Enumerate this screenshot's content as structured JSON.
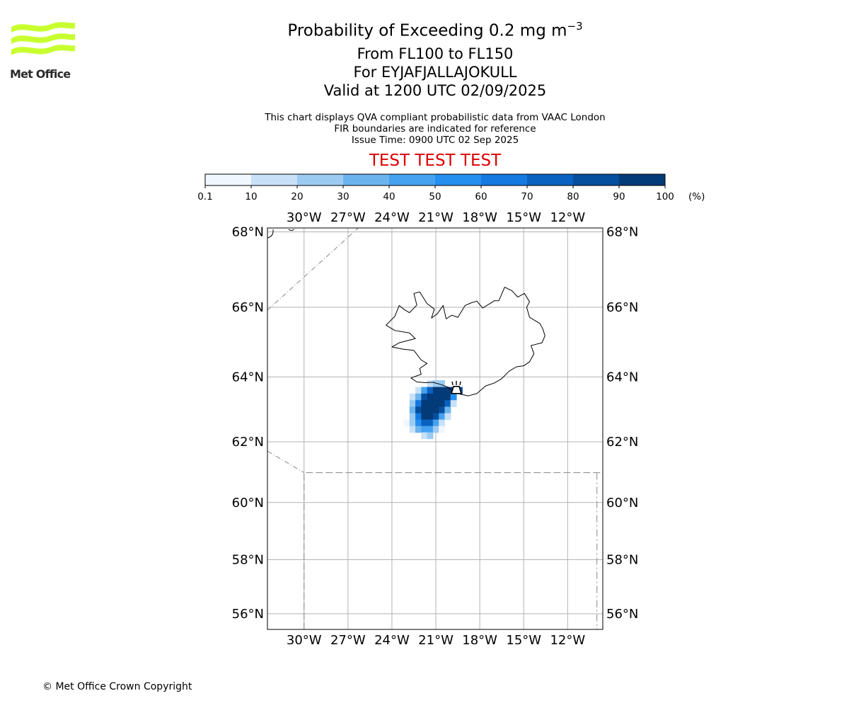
{
  "brand": {
    "logo_text": "Met Office",
    "logo_color": "#c8ff2f"
  },
  "header": {
    "title_main": "Probability of Exceeding 0.2 mg m",
    "title_exponent": "−3",
    "level_range": "From FL100 to FL150",
    "volcano": "For EYJAFJALLAJOKULL",
    "valid_time": "Valid at 1200 UTC 02/09/2025",
    "note_1": "This chart displays QVA compliant probabilistic data from VAAC London",
    "note_2": "FIR boundaries are indicated for reference",
    "issue_time": "Issue Time: 0900 UTC 02 Sep 2025",
    "test_banner": "TEST TEST TEST",
    "test_color": "#dd0000"
  },
  "colorbar": {
    "tick_labels": [
      "0.1",
      "10",
      "20",
      "30",
      "40",
      "50",
      "60",
      "70",
      "80",
      "90",
      "100"
    ],
    "unit": "(%)",
    "colors": [
      "#f0f7ff",
      "#c8e1f8",
      "#9ccbf2",
      "#6cb4ee",
      "#45a2f0",
      "#258ff0",
      "#1479e0",
      "#0a62c0",
      "#064e9e",
      "#033a78",
      "#022a5a"
    ]
  },
  "map": {
    "lon_labels": [
      "30°W",
      "27°W",
      "24°W",
      "21°W",
      "18°W",
      "15°W",
      "12°W"
    ],
    "lat_labels": [
      "68°N",
      "66°N",
      "64°N",
      "62°N",
      "60°N",
      "58°N",
      "56°N"
    ],
    "lon_ticks": [
      -30,
      -27,
      -24,
      -21,
      -18,
      -15,
      -12
    ],
    "lat_ticks": [
      68,
      66,
      64,
      62,
      60,
      58,
      56
    ],
    "extent": {
      "lon_min": -32.5,
      "lon_max": -9.6,
      "lat_min": 55.4,
      "lat_max": 68.1
    },
    "volcano": {
      "name": "Eyjafjallajokull",
      "lon": -19.6,
      "lat": 63.63
    },
    "plume_cells": [
      {
        "lon": -21.4,
        "lat": 63.8,
        "p": 15
      },
      {
        "lon": -21.0,
        "lat": 63.8,
        "p": 25
      },
      {
        "lon": -20.6,
        "lat": 63.8,
        "p": 20
      },
      {
        "lon": -22.2,
        "lat": 63.6,
        "p": 15
      },
      {
        "lon": -21.8,
        "lat": 63.6,
        "p": 45
      },
      {
        "lon": -21.4,
        "lat": 63.6,
        "p": 75
      },
      {
        "lon": -21.0,
        "lat": 63.6,
        "p": 95
      },
      {
        "lon": -20.6,
        "lat": 63.6,
        "p": 98
      },
      {
        "lon": -20.2,
        "lat": 63.6,
        "p": 98
      },
      {
        "lon": -19.8,
        "lat": 63.6,
        "p": 95
      },
      {
        "lon": -19.4,
        "lat": 63.6,
        "p": 85
      },
      {
        "lon": -22.6,
        "lat": 63.4,
        "p": 10
      },
      {
        "lon": -22.2,
        "lat": 63.4,
        "p": 35
      },
      {
        "lon": -21.8,
        "lat": 63.4,
        "p": 85
      },
      {
        "lon": -21.4,
        "lat": 63.4,
        "p": 95
      },
      {
        "lon": -21.0,
        "lat": 63.4,
        "p": 98
      },
      {
        "lon": -20.6,
        "lat": 63.4,
        "p": 98
      },
      {
        "lon": -20.2,
        "lat": 63.4,
        "p": 95
      },
      {
        "lon": -19.8,
        "lat": 63.4,
        "p": 55
      },
      {
        "lon": -22.6,
        "lat": 63.2,
        "p": 20
      },
      {
        "lon": -22.2,
        "lat": 63.2,
        "p": 65
      },
      {
        "lon": -21.8,
        "lat": 63.2,
        "p": 95
      },
      {
        "lon": -21.4,
        "lat": 63.2,
        "p": 98
      },
      {
        "lon": -21.0,
        "lat": 63.2,
        "p": 98
      },
      {
        "lon": -20.6,
        "lat": 63.2,
        "p": 98
      },
      {
        "lon": -20.2,
        "lat": 63.2,
        "p": 75
      },
      {
        "lon": -19.8,
        "lat": 63.2,
        "p": 15
      },
      {
        "lon": -22.6,
        "lat": 63.0,
        "p": 30
      },
      {
        "lon": -22.2,
        "lat": 63.0,
        "p": 85
      },
      {
        "lon": -21.8,
        "lat": 63.0,
        "p": 98
      },
      {
        "lon": -21.4,
        "lat": 63.0,
        "p": 98
      },
      {
        "lon": -21.0,
        "lat": 63.0,
        "p": 98
      },
      {
        "lon": -20.6,
        "lat": 63.0,
        "p": 85
      },
      {
        "lon": -20.2,
        "lat": 63.0,
        "p": 30
      },
      {
        "lon": -22.6,
        "lat": 62.8,
        "p": 25
      },
      {
        "lon": -22.2,
        "lat": 62.8,
        "p": 65
      },
      {
        "lon": -21.8,
        "lat": 62.8,
        "p": 95
      },
      {
        "lon": -21.4,
        "lat": 62.8,
        "p": 98
      },
      {
        "lon": -21.0,
        "lat": 62.8,
        "p": 88
      },
      {
        "lon": -20.6,
        "lat": 62.8,
        "p": 45
      },
      {
        "lon": -20.2,
        "lat": 62.8,
        "p": 10
      },
      {
        "lon": -23.0,
        "lat": 62.6,
        "p": 8
      },
      {
        "lon": -22.6,
        "lat": 62.6,
        "p": 25
      },
      {
        "lon": -22.2,
        "lat": 62.6,
        "p": 55
      },
      {
        "lon": -21.8,
        "lat": 62.6,
        "p": 75
      },
      {
        "lon": -21.4,
        "lat": 62.6,
        "p": 72
      },
      {
        "lon": -21.0,
        "lat": 62.6,
        "p": 45
      },
      {
        "lon": -20.6,
        "lat": 62.6,
        "p": 15
      },
      {
        "lon": -22.6,
        "lat": 62.4,
        "p": 15
      },
      {
        "lon": -22.2,
        "lat": 62.4,
        "p": 35
      },
      {
        "lon": -21.8,
        "lat": 62.4,
        "p": 45
      },
      {
        "lon": -21.4,
        "lat": 62.4,
        "p": 42
      },
      {
        "lon": -21.0,
        "lat": 62.4,
        "p": 25
      },
      {
        "lon": -20.6,
        "lat": 62.4,
        "p": 8
      },
      {
        "lon": -21.8,
        "lat": 62.2,
        "p": 15
      },
      {
        "lon": -21.4,
        "lat": 62.2,
        "p": 20
      }
    ]
  },
  "footer": {
    "copyright": "© Met Office Crown Copyright"
  }
}
